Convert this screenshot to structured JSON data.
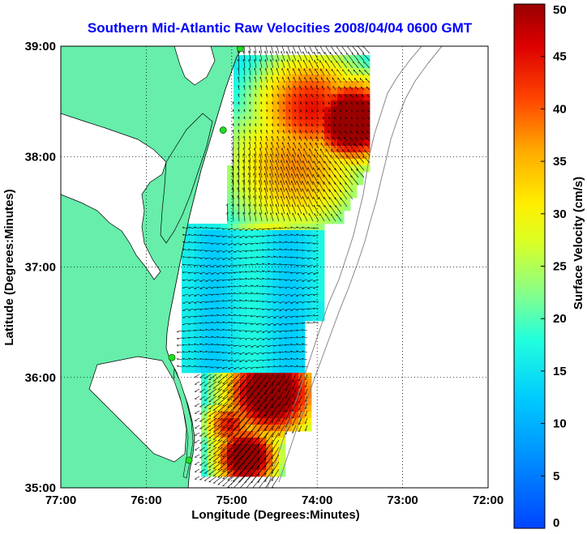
{
  "chart_data": {
    "type": "map",
    "title": "Southern Mid-Atlantic Raw Velocities 2008/04/04 0600 GMT",
    "xlabel": "Longitude (Degrees:Minutes)",
    "ylabel": "Latitude (Degrees:Minutes)",
    "xlim": [
      -77,
      -72
    ],
    "ylim": [
      35,
      39
    ],
    "x_ticks": [
      {
        "value": -77,
        "label": "77:00"
      },
      {
        "value": -76,
        "label": "76:00"
      },
      {
        "value": -75,
        "label": "75:00"
      },
      {
        "value": -74,
        "label": "74:00"
      },
      {
        "value": -73,
        "label": "73:00"
      },
      {
        "value": -72,
        "label": "72:00"
      }
    ],
    "y_ticks": [
      {
        "value": 35,
        "label": "35:00"
      },
      {
        "value": 36,
        "label": "36:00"
      },
      {
        "value": 37,
        "label": "37:00"
      },
      {
        "value": 38,
        "label": "38:00"
      },
      {
        "value": 39,
        "label": "39:00"
      }
    ],
    "grid": true,
    "colorbar": {
      "label": "Surface Velocity (cm/s)",
      "range": [
        0,
        50
      ],
      "ticks": [
        "0",
        "5",
        "10",
        "15",
        "20",
        "25",
        "30",
        "35",
        "40",
        "45",
        "50"
      ],
      "colormap": "jet"
    },
    "land_color": "#66eeaa",
    "stations": [
      {
        "lon": -74.9,
        "lat": 38.98
      },
      {
        "lon": -75.1,
        "lat": 38.24
      },
      {
        "lon": -75.7,
        "lat": 36.18
      },
      {
        "lon": -75.5,
        "lat": 35.25
      }
    ]
  }
}
